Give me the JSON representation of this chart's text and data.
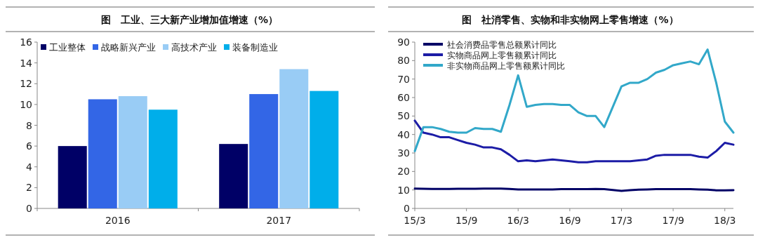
{
  "chart_data": [
    {
      "type": "bar",
      "title": "图　工业、三大新产业增加值增速（%）",
      "categories": [
        "2016",
        "2017"
      ],
      "series": [
        {
          "name": "工业整体",
          "color": "#000066",
          "values": [
            6.0,
            6.2
          ]
        },
        {
          "name": "战略新兴产业",
          "color": "#3366e6",
          "values": [
            10.5,
            11.0
          ]
        },
        {
          "name": "高技术产业",
          "color": "#99ccf5",
          "values": [
            10.8,
            13.4
          ]
        },
        {
          "name": "装备制造业",
          "color": "#00aeea",
          "values": [
            9.5,
            11.3
          ]
        }
      ],
      "ylim": [
        0,
        16
      ],
      "yticks": [
        0,
        2,
        4,
        6,
        8,
        10,
        12,
        14,
        16
      ],
      "legend": "top",
      "grid": false
    },
    {
      "type": "line",
      "title": "图　社消零售、实物和非实物网上零售增速（%）",
      "x": [
        "2015-03",
        "2015-04",
        "2015-05",
        "2015-06",
        "2015-07",
        "2015-08",
        "2015-09",
        "2015-10",
        "2015-11",
        "2015-12",
        "2016-01",
        "2016-02",
        "2016-03",
        "2016-04",
        "2016-05",
        "2016-06",
        "2016-07",
        "2016-08",
        "2016-09",
        "2016-10",
        "2016-11",
        "2016-12",
        "2017-01",
        "2017-02",
        "2017-03",
        "2017-04",
        "2017-05",
        "2017-06",
        "2017-07",
        "2017-08",
        "2017-09",
        "2017-10",
        "2017-11",
        "2017-12",
        "2018-01",
        "2018-02",
        "2018-03",
        "2018-04"
      ],
      "series": [
        {
          "name": "社会消费品零售总额累计同比",
          "color": "#000066",
          "values": [
            10.7,
            10.6,
            10.5,
            10.5,
            10.5,
            10.6,
            10.6,
            10.6,
            10.7,
            10.7,
            10.7,
            10.5,
            10.3,
            10.3,
            10.3,
            10.3,
            10.3,
            10.4,
            10.4,
            10.4,
            10.4,
            10.5,
            10.4,
            10.0,
            9.5,
            9.9,
            10.2,
            10.3,
            10.4,
            10.4,
            10.4,
            10.4,
            10.4,
            10.3,
            10.2,
            9.8,
            9.8,
            9.9
          ]
        },
        {
          "name": "实物商品网上零售额累计同比",
          "color": "#1c1ca6",
          "values": [
            47.5,
            41,
            40,
            38.5,
            38.5,
            37,
            35.5,
            34.5,
            33,
            33,
            32,
            29,
            25.5,
            26,
            25.5,
            26,
            26.5,
            26,
            25.5,
            25,
            25,
            25.5,
            25.5,
            25.5,
            25.5,
            25.5,
            26,
            26.5,
            28.5,
            29,
            29,
            29,
            29,
            28,
            27.5,
            31,
            35.5,
            34.5
          ]
        },
        {
          "name": "非实物商品网上零售额累计同比",
          "color": "#32a8c9",
          "values": [
            31,
            44,
            44,
            43,
            41.5,
            41,
            41,
            43.5,
            43,
            43,
            41.5,
            56,
            72,
            55,
            56,
            56.5,
            56.5,
            56,
            56,
            52,
            50,
            50,
            44,
            55,
            66,
            68,
            68,
            70,
            73.5,
            75,
            77.5,
            78.5,
            79.5,
            78,
            86,
            68,
            47,
            41
          ]
        }
      ],
      "xlim": [
        "2015-03",
        "2018-04"
      ],
      "xticks": [
        {
          "value": "2015-03",
          "label": "15/3"
        },
        {
          "value": "2015-09",
          "label": "15/9"
        },
        {
          "value": "2016-03",
          "label": "16/3"
        },
        {
          "value": "2016-09",
          "label": "16/9"
        },
        {
          "value": "2017-03",
          "label": "17/3"
        },
        {
          "value": "2017-09",
          "label": "17/9"
        },
        {
          "value": "2018-03",
          "label": "18/3"
        }
      ],
      "ylim": [
        0,
        90
      ],
      "yticks": [
        0,
        10,
        20,
        30,
        40,
        50,
        60,
        70,
        80,
        90
      ],
      "legend": "top left",
      "grid": false
    }
  ]
}
